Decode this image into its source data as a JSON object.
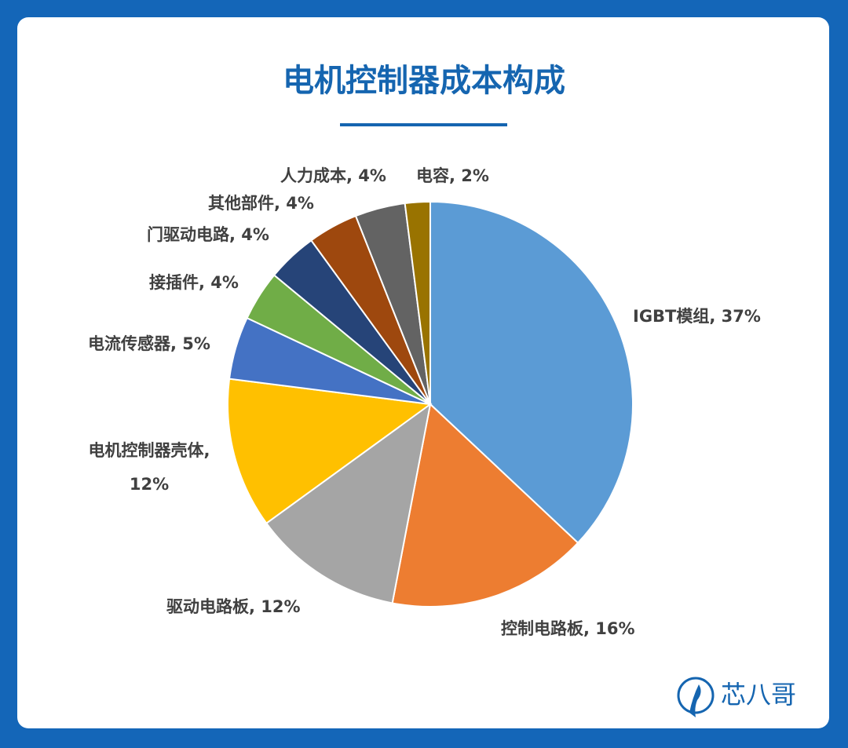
{
  "chart_data": {
    "type": "pie",
    "title": "电机控制器成本构成",
    "values": [
      37,
      16,
      12,
      12,
      5,
      4,
      4,
      4,
      4,
      2
    ],
    "value_labels": [
      "IGBT模组, 37%",
      "控制电路板, 16%",
      "驱动电路板, 12%",
      "电机控制器壳体, 12%",
      "电流传感器, 5%",
      "接插件, 4%",
      "门驱动电路, 4%",
      "其他部件, 4%",
      "人力成本, 4%",
      "电容, 2%"
    ],
    "colors": [
      "#5b9bd5",
      "#ed7d31",
      "#a5a5a5",
      "#ffc000",
      "#4472c4",
      "#70ad47",
      "#264478",
      "#9e480e",
      "#636363",
      "#997300"
    ]
  },
  "brand": "芯八哥"
}
